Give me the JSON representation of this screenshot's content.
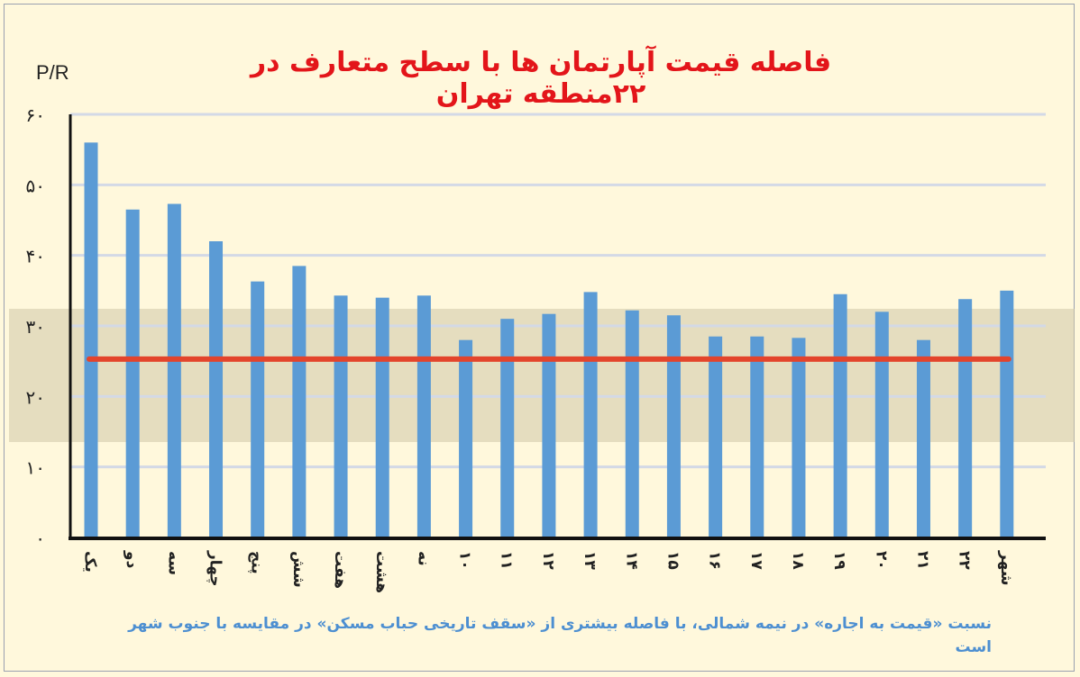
{
  "title": "فاصله قیمت آپارتمان ها با سطح متعارف در ۲۲منطقه تهران",
  "caption": "نسبت «قیمت به اجاره» در نیمه شمالی، با فاصله بیشتری از «سقف تاریخی حباب مسکن» در مقایسه با جنوب شهر است",
  "colors": {
    "bar": "#5b9bd5",
    "line": "#e3442c",
    "title": "#e3151a",
    "caption": "#4d8fd1",
    "band": "#cfc6a8"
  },
  "chart_data": {
    "type": "bar",
    "ylabel": "P/R",
    "xlabel": "",
    "ylim": [
      0,
      60
    ],
    "yticks": [
      "۰",
      "۱۰",
      "۲۰",
      "۳۰",
      "۴۰",
      "۵۰",
      "۶۰"
    ],
    "grid": true,
    "categories": [
      "یک",
      "دو",
      "سه",
      "چهار",
      "پنج",
      "شش",
      "هفت",
      "هشت",
      "نه",
      "۱۰",
      "۱۱",
      "۱۲",
      "۱۳",
      "۱۴",
      "۱۵",
      "۱۶",
      "۱۷",
      "۱۸",
      "۱۹",
      "۲۰",
      "۲۱",
      "۲۲",
      "شهر"
    ],
    "values": [
      56,
      46.5,
      47.3,
      42,
      36.3,
      38.5,
      34.3,
      34,
      34.3,
      28,
      31,
      31.7,
      34.8,
      32.2,
      31.5,
      28.5,
      28.5,
      28.3,
      34.5,
      32,
      28,
      33.8,
      35
    ],
    "reference_line": 25.3
  }
}
